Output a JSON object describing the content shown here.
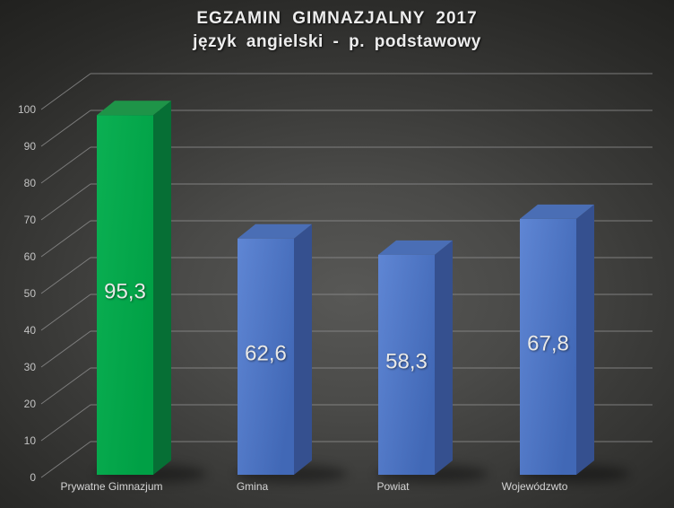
{
  "chart_data": {
    "type": "bar",
    "style": "3d-column",
    "title": "EGZAMIN GIMNAZJALNY 2017",
    "subtitle": "język angielski - p. podstawowy",
    "categories": [
      "Prywatne Gimnazjum",
      "Gmina",
      "Powiat",
      "Wojewódzwto"
    ],
    "values": [
      95.3,
      62.6,
      58.3,
      67.8
    ],
    "value_labels": [
      "95,3",
      "62,6",
      "58,3",
      "67,8"
    ],
    "xlabel": "",
    "ylabel": "",
    "ylim": [
      0,
      100
    ],
    "yticks": [
      0,
      10,
      20,
      30,
      40,
      50,
      60,
      70,
      80,
      90,
      100
    ],
    "grid": true,
    "legend": false,
    "bar_styles": [
      "highlight",
      "normal",
      "normal",
      "normal"
    ],
    "series_colors": {
      "highlight": {
        "front1": "#0bb053",
        "front2": "#00a045",
        "top": "#1e9448",
        "side": "#066f35"
      },
      "normal": {
        "front1": "#5f86d4",
        "front2": "#4168b6",
        "top": "#4a6eb5",
        "side": "#35508f"
      }
    },
    "colors": {
      "background_center": "#585856",
      "background_edge": "#1d1d1b",
      "gridline": "#8e8e8e",
      "tick_text": "#c3c3c3",
      "category_text": "#d4d4d4",
      "value_text": "#e9e9e7",
      "title_text": "#ededed"
    }
  }
}
